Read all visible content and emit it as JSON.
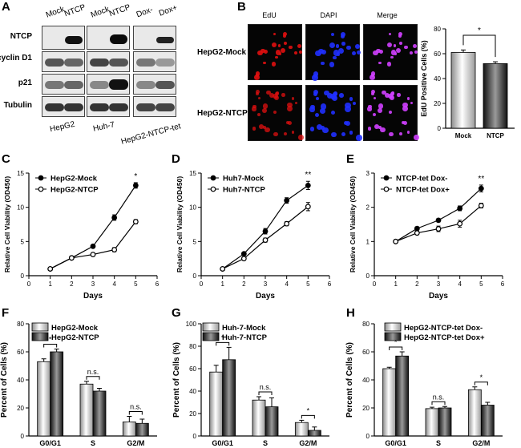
{
  "panels": {
    "A": "A",
    "B": "B",
    "C": "C",
    "D": "D",
    "E": "E",
    "F": "F",
    "G": "G",
    "H": "H"
  },
  "westernBlot": {
    "proteins": [
      "NTCP",
      "cyclin D1",
      "p21",
      "Tubulin"
    ],
    "groups": [
      {
        "name": "HepG2",
        "lanes": [
          "Mock",
          "NTCP"
        ]
      },
      {
        "name": "Huh-7",
        "lanes": [
          "Mock",
          "NTCP"
        ]
      },
      {
        "name": "HepG2-NTCP-tet",
        "lanes": [
          "Dox-",
          "Dox+"
        ]
      }
    ]
  },
  "imaging": {
    "columns": [
      "EdU",
      "DAPI",
      "Merge"
    ],
    "rows": [
      "HepG2-Mock",
      "HepG2-NTCP"
    ]
  },
  "chart_data": [
    {
      "id": "B",
      "type": "bar",
      "ylabel": "EdU Positive Cells (%)",
      "ylim": [
        0,
        80
      ],
      "yticks": [
        0,
        20,
        40,
        60,
        80
      ],
      "categories": [
        "Mock",
        "NTCP"
      ],
      "values": [
        61,
        52
      ],
      "errors": [
        2,
        1.5
      ],
      "significance": "*"
    },
    {
      "id": "C",
      "type": "line",
      "xlabel": "Days",
      "ylabel": "Relative Cell Viability (OD450)",
      "xlim": [
        0,
        6
      ],
      "ylim": [
        0,
        15
      ],
      "xticks": [
        0,
        1,
        2,
        3,
        4,
        5,
        6
      ],
      "yticks": [
        0,
        5,
        10,
        15
      ],
      "x": [
        1,
        2,
        3,
        4,
        5
      ],
      "series": [
        {
          "name": "HepG2-Mock",
          "marker": "filled",
          "values": [
            1,
            2.6,
            4.3,
            8.5,
            13.2
          ],
          "errors": [
            0.1,
            0.2,
            0.2,
            0.4,
            0.4
          ]
        },
        {
          "name": "HepG2-NTCP",
          "marker": "open",
          "values": [
            1,
            2.6,
            3.1,
            3.8,
            7.9
          ],
          "errors": [
            0.1,
            0.1,
            0.2,
            0.3,
            0.3
          ]
        }
      ],
      "annotation": "*"
    },
    {
      "id": "D",
      "type": "line",
      "xlabel": "Days",
      "ylabel": "Relative Cell Viability (OD450)",
      "xlim": [
        0,
        6
      ],
      "ylim": [
        0,
        15
      ],
      "xticks": [
        0,
        1,
        2,
        3,
        4,
        5,
        6
      ],
      "yticks": [
        0,
        5,
        10,
        15
      ],
      "x": [
        1,
        2,
        3,
        4,
        5
      ],
      "series": [
        {
          "name": "Huh7-Mock",
          "marker": "filled",
          "values": [
            1,
            3.2,
            6.5,
            11,
            13.2
          ],
          "errors": [
            0.1,
            0.2,
            0.4,
            0.4,
            0.6
          ]
        },
        {
          "name": "Huh7-NTCP",
          "marker": "open",
          "values": [
            1,
            2.5,
            5.2,
            7.6,
            10.1
          ],
          "errors": [
            0.1,
            0.2,
            0.3,
            0.3,
            0.6
          ]
        }
      ],
      "annotation": "**"
    },
    {
      "id": "E",
      "type": "line",
      "xlabel": "Days",
      "ylabel": "Relative Cell Viability (OD450)",
      "xlim": [
        0,
        6
      ],
      "ylim": [
        0,
        3
      ],
      "xticks": [
        0,
        1,
        2,
        3,
        4,
        5,
        6
      ],
      "yticks": [
        0,
        1,
        2,
        3
      ],
      "x": [
        1,
        2,
        3,
        4,
        5
      ],
      "series": [
        {
          "name": "NTCP-tet Dox-",
          "marker": "filled",
          "values": [
            1,
            1.38,
            1.62,
            1.97,
            2.55
          ],
          "errors": [
            0.03,
            0.05,
            0.05,
            0.07,
            0.1
          ]
        },
        {
          "name": "NTCP-tet Dox+",
          "marker": "open",
          "values": [
            1,
            1.25,
            1.37,
            1.52,
            2.05
          ],
          "errors": [
            0.03,
            0.05,
            0.08,
            0.1,
            0.07
          ]
        }
      ],
      "annotation": "**"
    },
    {
      "id": "F",
      "type": "bar",
      "ylabel": "Percent of Cells (%)",
      "ylim": [
        0,
        80
      ],
      "yticks": [
        0,
        20,
        40,
        60,
        80
      ],
      "categories": [
        "G0/G1",
        "S",
        "G2/M"
      ],
      "series": [
        {
          "name": "HepG2-Mock",
          "values": [
            53,
            37,
            10
          ],
          "errors": [
            2,
            2,
            4
          ]
        },
        {
          "name": "HepG2-NTCP",
          "values": [
            60,
            32,
            9
          ],
          "errors": [
            2,
            2,
            3
          ]
        }
      ],
      "significance": [
        "*",
        "n.s.",
        "n.s."
      ]
    },
    {
      "id": "G",
      "type": "bar",
      "ylabel": "Percent of Cells (%)",
      "ylim": [
        0,
        100
      ],
      "yticks": [
        0,
        20,
        40,
        60,
        80,
        100
      ],
      "categories": [
        "G0/G1",
        "S",
        "G2/M"
      ],
      "series": [
        {
          "name": "Huh-7-Mock",
          "values": [
            57,
            32,
            12
          ],
          "errors": [
            6,
            3,
            2
          ]
        },
        {
          "name": "Huh-7-NTCP",
          "values": [
            68,
            26,
            5
          ],
          "errors": [
            11,
            8,
            3
          ]
        }
      ],
      "significance": [
        "*",
        "n.s.",
        "*"
      ]
    },
    {
      "id": "H",
      "type": "bar",
      "ylabel": "Percent of Cells (%)",
      "ylim": [
        0,
        80
      ],
      "yticks": [
        0,
        20,
        40,
        60,
        80
      ],
      "categories": [
        "G0/G1",
        "S",
        "G2/M"
      ],
      "series": [
        {
          "name": "HepG2-NTCP-tet Dox-",
          "values": [
            48,
            19.5,
            33
          ],
          "errors": [
            1,
            1,
            2
          ]
        },
        {
          "name": "HepG2-NTCP-tet Dox+",
          "values": [
            57,
            20,
            22
          ],
          "errors": [
            3,
            1,
            2
          ]
        }
      ],
      "significance": [
        "*",
        "n.s.",
        "*"
      ]
    }
  ]
}
